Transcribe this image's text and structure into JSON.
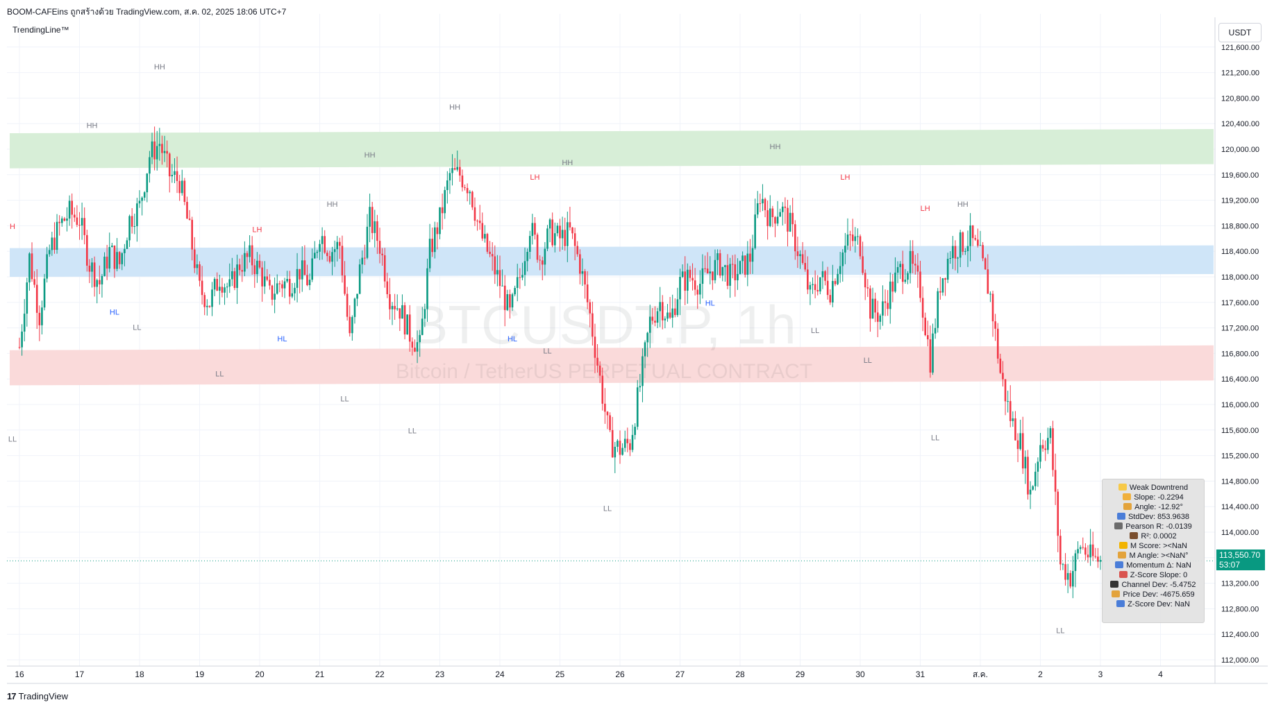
{
  "header": {
    "title": "BOOM-CAFEins ถูกสร้างด้วย TradingView.com, ส.ค. 02, 2025 18:06 UTC+7",
    "indicator": "TrendingLine™",
    "currency": "USDT"
  },
  "watermark": {
    "symbol": "BTCUSDT.P, 1h",
    "description": "Bitcoin / TetherUS PERPETUAL CONTRACT"
  },
  "footer": {
    "logo_icon": "tradingview-logo-icon",
    "brand": "TradingView"
  },
  "price_badge": {
    "price": "113,550.70",
    "countdown": "53:07"
  },
  "info_panel": [
    {
      "icon": "warning-icon",
      "color": "#f7c948",
      "text": "Weak Downtrend"
    },
    {
      "icon": "hand-icon",
      "color": "#f0b03c",
      "text": "Slope: -0.2294"
    },
    {
      "icon": "ruler-icon",
      "color": "#e3a33b",
      "text": "Angle: -12.92°"
    },
    {
      "icon": "bar-chart-icon",
      "color": "#4a7dd8",
      "text": "StdDev: 853.9638"
    },
    {
      "icon": "link-icon",
      "color": "#6b6b6b",
      "text": "Pearson R: -0.0139"
    },
    {
      "icon": "abacus-icon",
      "color": "#7a4e2d",
      "text": "R²: 0.0002"
    },
    {
      "icon": "lightning-icon",
      "color": "#f2b400",
      "text": "M Score: ><NaN"
    },
    {
      "icon": "triangle-ruler-icon",
      "color": "#e3a33b",
      "text": "M Angle: ><NaN°"
    },
    {
      "icon": "bar-chart-icon",
      "color": "#4a7dd8",
      "text": "Momentum Δ: NaN"
    },
    {
      "icon": "chart-decreasing-icon",
      "color": "#d9534f",
      "text": "Z-Score Slope: 0"
    },
    {
      "icon": "phone-icon",
      "color": "#333333",
      "text": "Channel Dev: -5.4752"
    },
    {
      "icon": "triangle-ruler-icon",
      "color": "#e3a33b",
      "text": "Price Dev: -4675.659"
    },
    {
      "icon": "bar-chart-icon",
      "color": "#4a7dd8",
      "text": "Z-Score Dev: NaN"
    }
  ],
  "colors": {
    "up": "#089981",
    "down": "#f23645",
    "zone_resistance": "#d7eed7",
    "zone_mid": "#cfe5f8",
    "zone_support": "#fadada",
    "label_gray": "#787b86",
    "label_red": "#f23645",
    "label_blue": "#2962ff"
  },
  "chart_data": {
    "type": "candlestick",
    "symbol": "BTCUSDT.P",
    "timeframe": "1h",
    "ylim": [
      111800,
      121800
    ],
    "y_ticks": [
      "112,000.00",
      "112,400.00",
      "112,800.00",
      "113,200.00",
      "113,600.00",
      "114,000.00",
      "114,400.00",
      "114,800.00",
      "115,200.00",
      "115,600.00",
      "116,000.00",
      "116,400.00",
      "116,800.00",
      "117,200.00",
      "117,600.00",
      "118,000.00",
      "118,400.00",
      "118,800.00",
      "119,200.00",
      "119,600.00",
      "120,000.00",
      "120,400.00",
      "120,800.00",
      "121,200.00",
      "121,600.00"
    ],
    "y_tick_values": [
      112000,
      112400,
      112800,
      113200,
      113600,
      114000,
      114400,
      114800,
      115200,
      115600,
      116000,
      116400,
      116800,
      117200,
      117600,
      118000,
      118400,
      118800,
      119200,
      119600,
      120000,
      120400,
      120800,
      121200,
      121600
    ],
    "x_tick_labels": [
      "16",
      "17",
      "18",
      "19",
      "20",
      "21",
      "22",
      "23",
      "24",
      "25",
      "26",
      "27",
      "28",
      "29",
      "30",
      "31",
      "ส.ค.",
      "2",
      "3",
      "4"
    ],
    "x_tick_index": [
      0,
      24,
      48,
      72,
      96,
      120,
      144,
      168,
      192,
      216,
      240,
      264,
      288,
      312,
      336,
      360,
      384,
      408,
      432,
      456
    ],
    "zones": [
      {
        "name": "resistance",
        "from": 119700,
        "to": 120250
      },
      {
        "name": "middle",
        "from": 118000,
        "to": 118450
      },
      {
        "name": "support",
        "from": 116300,
        "to": 116850
      }
    ],
    "last_price": 113550.7,
    "swing_labels": [
      {
        "text": "H",
        "x": -1,
        "y": 118750,
        "color": "red"
      },
      {
        "text": "LL",
        "x": -1,
        "y": 115420,
        "color": "gray"
      },
      {
        "text": "HH",
        "x": 29,
        "y": 120330,
        "color": "gray"
      },
      {
        "text": "HL",
        "x": 38,
        "y": 117410,
        "color": "blue"
      },
      {
        "text": "LL",
        "x": 47,
        "y": 117170,
        "color": "gray"
      },
      {
        "text": "HH",
        "x": 56,
        "y": 121250,
        "color": "gray"
      },
      {
        "text": "LL",
        "x": 80,
        "y": 116440,
        "color": "gray"
      },
      {
        "text": "LH",
        "x": 95,
        "y": 118700,
        "color": "red"
      },
      {
        "text": "HL",
        "x": 105,
        "y": 116990,
        "color": "blue"
      },
      {
        "text": "HH",
        "x": 125,
        "y": 119100,
        "color": "gray"
      },
      {
        "text": "LL",
        "x": 130,
        "y": 116050,
        "color": "gray"
      },
      {
        "text": "HH",
        "x": 140,
        "y": 119870,
        "color": "gray"
      },
      {
        "text": "LL",
        "x": 157,
        "y": 115550,
        "color": "gray"
      },
      {
        "text": "HH",
        "x": 174,
        "y": 120620,
        "color": "gray"
      },
      {
        "text": "LH",
        "x": 206,
        "y": 119520,
        "color": "red"
      },
      {
        "text": "HL",
        "x": 197,
        "y": 116990,
        "color": "blue"
      },
      {
        "text": "LL",
        "x": 211,
        "y": 116800,
        "color": "gray"
      },
      {
        "text": "HH",
        "x": 219,
        "y": 119750,
        "color": "gray"
      },
      {
        "text": "LL",
        "x": 235,
        "y": 114330,
        "color": "gray"
      },
      {
        "text": "HL",
        "x": 276,
        "y": 117550,
        "color": "blue"
      },
      {
        "text": "HH",
        "x": 302,
        "y": 120000,
        "color": "gray"
      },
      {
        "text": "LL",
        "x": 318,
        "y": 117120,
        "color": "gray"
      },
      {
        "text": "LH",
        "x": 330,
        "y": 119520,
        "color": "red"
      },
      {
        "text": "LL",
        "x": 339,
        "y": 116650,
        "color": "gray"
      },
      {
        "text": "LH",
        "x": 362,
        "y": 119030,
        "color": "red"
      },
      {
        "text": "HH",
        "x": 377,
        "y": 119100,
        "color": "gray"
      },
      {
        "text": "LL",
        "x": 366,
        "y": 115440,
        "color": "gray"
      },
      {
        "text": "LL",
        "x": 416,
        "y": 112420,
        "color": "gray"
      }
    ],
    "trend_points": [
      [
        0,
        116900
      ],
      [
        4,
        118300
      ],
      [
        8,
        117400
      ],
      [
        12,
        118400
      ],
      [
        16,
        118800
      ],
      [
        20,
        119000
      ],
      [
        24,
        118900
      ],
      [
        28,
        118200
      ],
      [
        32,
        117900
      ],
      [
        36,
        118400
      ],
      [
        40,
        118200
      ],
      [
        44,
        118900
      ],
      [
        48,
        119100
      ],
      [
        52,
        119900
      ],
      [
        56,
        120100
      ],
      [
        60,
        119600
      ],
      [
        64,
        119500
      ],
      [
        68,
        118700
      ],
      [
        72,
        117800
      ],
      [
        76,
        117600
      ],
      [
        80,
        118000
      ],
      [
        84,
        117800
      ],
      [
        88,
        118200
      ],
      [
        92,
        118300
      ],
      [
        96,
        118100
      ],
      [
        100,
        117700
      ],
      [
        104,
        117900
      ],
      [
        108,
        117900
      ],
      [
        112,
        118100
      ],
      [
        116,
        117900
      ],
      [
        120,
        118700
      ],
      [
        124,
        118400
      ],
      [
        128,
        118500
      ],
      [
        132,
        117000
      ],
      [
        136,
        118100
      ],
      [
        140,
        118900
      ],
      [
        144,
        118500
      ],
      [
        148,
        117700
      ],
      [
        152,
        117500
      ],
      [
        156,
        117100
      ],
      [
        160,
        116900
      ],
      [
        164,
        118400
      ],
      [
        168,
        118900
      ],
      [
        172,
        119600
      ],
      [
        176,
        119600
      ],
      [
        180,
        119400
      ],
      [
        184,
        118700
      ],
      [
        188,
        118300
      ],
      [
        192,
        117900
      ],
      [
        196,
        117400
      ],
      [
        200,
        118000
      ],
      [
        204,
        118800
      ],
      [
        208,
        118300
      ],
      [
        212,
        118700
      ],
      [
        216,
        118600
      ],
      [
        220,
        118700
      ],
      [
        224,
        118200
      ],
      [
        228,
        117400
      ],
      [
        232,
        116400
      ],
      [
        236,
        115400
      ],
      [
        240,
        115300
      ],
      [
        244,
        115400
      ],
      [
        248,
        116300
      ],
      [
        252,
        117300
      ],
      [
        256,
        117600
      ],
      [
        260,
        117300
      ],
      [
        264,
        117900
      ],
      [
        268,
        118000
      ],
      [
        272,
        117900
      ],
      [
        276,
        118100
      ],
      [
        280,
        118200
      ],
      [
        284,
        118000
      ],
      [
        288,
        118100
      ],
      [
        292,
        118300
      ],
      [
        296,
        119300
      ],
      [
        300,
        118900
      ],
      [
        304,
        119100
      ],
      [
        308,
        118800
      ],
      [
        312,
        118300
      ],
      [
        316,
        117700
      ],
      [
        320,
        118000
      ],
      [
        324,
        117800
      ],
      [
        328,
        118300
      ],
      [
        332,
        118600
      ],
      [
        336,
        118500
      ],
      [
        340,
        117500
      ],
      [
        344,
        117400
      ],
      [
        348,
        117800
      ],
      [
        352,
        118100
      ],
      [
        356,
        118200
      ],
      [
        360,
        117800
      ],
      [
        364,
        116700
      ],
      [
        368,
        117900
      ],
      [
        372,
        118400
      ],
      [
        376,
        118500
      ],
      [
        380,
        118600
      ],
      [
        384,
        118300
      ],
      [
        388,
        117700
      ],
      [
        392,
        116500
      ],
      [
        396,
        115800
      ],
      [
        400,
        115400
      ],
      [
        404,
        114600
      ],
      [
        408,
        115400
      ],
      [
        412,
        115500
      ],
      [
        416,
        113500
      ],
      [
        420,
        113300
      ],
      [
        424,
        113800
      ],
      [
        428,
        113600
      ],
      [
        432,
        113550
      ]
    ],
    "seed": 7
  }
}
